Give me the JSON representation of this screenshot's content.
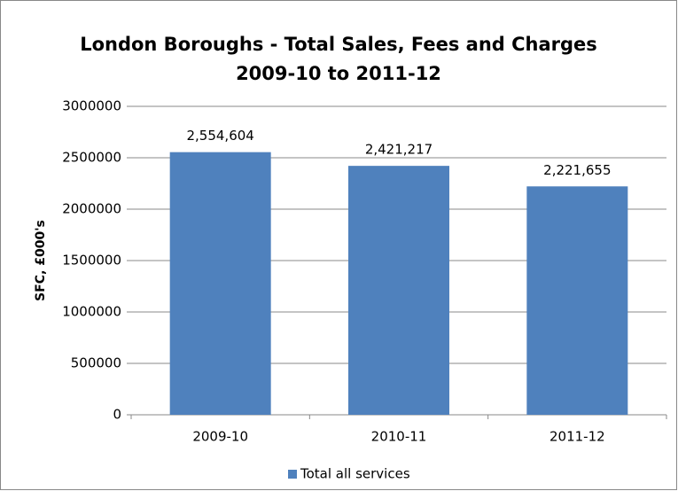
{
  "chart_data": {
    "type": "bar",
    "title": [
      "London Boroughs - Total Sales, Fees and Charges",
      "2009-10 to 2011-12"
    ],
    "y_label": "SFC, £000's",
    "categories": [
      "2009-10",
      "2010-11",
      "2011-12"
    ],
    "series": [
      {
        "name": "Total all services",
        "color": "#4f81bd",
        "values": [
          2554604,
          2421217,
          2221655
        ],
        "value_labels": [
          "2,554,604",
          "2,421,217",
          "2,221,655"
        ]
      }
    ],
    "ylim": [
      0,
      3000000
    ],
    "yticks": [
      0,
      500000,
      1000000,
      1500000,
      2000000,
      2500000,
      3000000
    ],
    "grid": true,
    "legend": "bottom"
  }
}
